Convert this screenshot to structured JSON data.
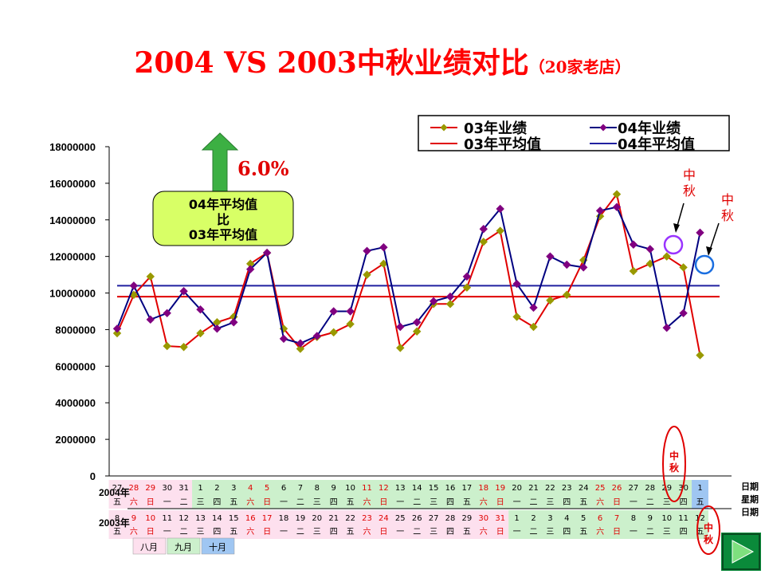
{
  "title": "2004 VS 2003中秋业绩对比",
  "subtitle": "（20家老店）",
  "chart_data": {
    "type": "line",
    "ylim": [
      0,
      18000000
    ],
    "yticks": [
      0,
      2000000,
      4000000,
      6000000,
      8000000,
      10000000,
      12000000,
      14000000,
      16000000,
      18000000
    ],
    "series": [
      {
        "name": "03年业绩",
        "color": "#e00000",
        "marker_color": "#999900",
        "values": [
          7800000,
          9900000,
          10900000,
          7100000,
          7050000,
          7800000,
          8400000,
          8700000,
          11600000,
          12200000,
          8050000,
          6950000,
          7600000,
          7850000,
          8300000,
          11000000,
          11600000,
          7000000,
          7900000,
          9400000,
          9400000,
          10300000,
          12800000,
          13400000,
          8700000,
          8150000,
          9600000,
          9900000,
          11800000,
          14200000,
          15400000,
          11200000,
          11600000,
          12000000,
          11400000,
          6600000
        ]
      },
      {
        "name": "04年业绩",
        "color": "#000080",
        "marker_color": "#800080",
        "values": [
          8050000,
          10400000,
          8550000,
          8900000,
          10100000,
          9100000,
          8050000,
          8400000,
          11300000,
          12200000,
          7500000,
          7250000,
          7650000,
          9000000,
          9000000,
          12300000,
          12500000,
          8150000,
          8400000,
          9550000,
          9800000,
          10900000,
          13500000,
          14600000,
          10500000,
          9200000,
          12000000,
          11550000,
          11400000,
          14500000,
          14700000,
          12650000,
          12400000,
          8100000,
          8900000,
          13300000
        ]
      },
      {
        "name": "03年平均值",
        "color": "#e00000",
        "value": 9800000
      },
      {
        "name": "04年平均值",
        "color": "#2020a0",
        "value": 10400000
      }
    ],
    "annotations": {
      "growth": "6.0%",
      "callout": [
        "04年平均值",
        "比",
        "03年平均值"
      ],
      "midautumn_1": "中秋",
      "midautumn_2": "中秋",
      "bottom_mark": "中秋"
    },
    "table": {
      "row_2004_label": "2004年",
      "row_2003_label": "2003年",
      "dates_2004": [
        "27",
        "28",
        "29",
        "30",
        "31",
        "1",
        "2",
        "3",
        "4",
        "5",
        "6",
        "7",
        "8",
        "9",
        "10",
        "11",
        "12",
        "13",
        "14",
        "15",
        "16",
        "17",
        "18",
        "19",
        "20",
        "21",
        "22",
        "23",
        "24",
        "25",
        "26",
        "27",
        "28",
        "29",
        "30",
        "1"
      ],
      "weekdays_2004": [
        "五",
        "六",
        "日",
        "一",
        "二",
        "三",
        "四",
        "五",
        "六",
        "日",
        "一",
        "二",
        "三",
        "四",
        "五",
        "六",
        "日",
        "一",
        "二",
        "三",
        "四",
        "五",
        "六",
        "日",
        "一",
        "二",
        "三",
        "四",
        "五",
        "六",
        "日",
        "一",
        "二",
        "三",
        "四",
        "五"
      ],
      "dates_2003": [
        "8",
        "9",
        "10",
        "11",
        "12",
        "13",
        "14",
        "15",
        "16",
        "17",
        "18",
        "19",
        "20",
        "21",
        "22",
        "23",
        "24",
        "25",
        "26",
        "27",
        "28",
        "29",
        "30",
        "31",
        "1",
        "2",
        "3",
        "4",
        "5",
        "6",
        "7",
        "8",
        "9",
        "10",
        "11",
        "12"
      ],
      "weekdays_2003": [
        "五",
        "六",
        "日",
        "一",
        "二",
        "三",
        "四",
        "五",
        "六",
        "日",
        "一",
        "二",
        "三",
        "四",
        "五",
        "六",
        "日",
        "一",
        "二",
        "三",
        "四",
        "五",
        "六",
        "日",
        "一",
        "二",
        "三",
        "四",
        "五",
        "六",
        "日",
        "一",
        "二",
        "三",
        "四",
        "五"
      ],
      "right_labels": [
        "日期",
        "星期",
        "日期"
      ],
      "months": [
        "八月",
        "九月",
        "十月"
      ]
    }
  }
}
